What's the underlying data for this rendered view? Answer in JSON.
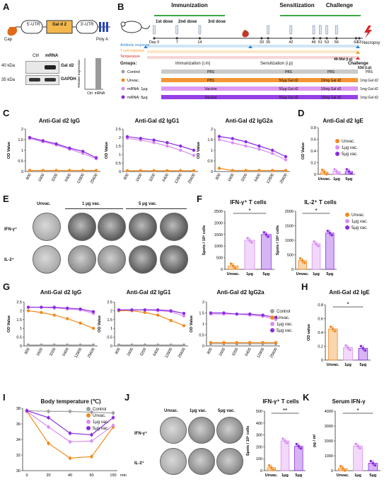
{
  "panels": {
    "A": "A",
    "B": "B",
    "C": "C",
    "D": "D",
    "E": "E",
    "F": "F",
    "G": "G",
    "H": "H",
    "I": "I",
    "J": "J",
    "K": "K"
  },
  "panelA": {
    "cap": "Cap",
    "utr5": "5'-UTR",
    "gene": "Gal d 2",
    "utr3": "3'-UTR",
    "polya": "Poly A",
    "lane_ctrl": "Ctrl",
    "lane_mrna": "mRNA",
    "kda40": "40 kDa",
    "kda35": "35 kDa",
    "band1": "Gal d2",
    "band2": "GAPDH",
    "bar_ylabel": "Relative expression",
    "bar_ctrl": "Ctrl",
    "bar_mrna": "mRNA",
    "bar_values": [
      0.02,
      1.0
    ]
  },
  "panelB": {
    "immunization": "Immunization",
    "sensitization": "Sensitization",
    "challenge": "Challenge",
    "dose1": "1st dose",
    "dose2": "2nd dose",
    "dose3": "3rd dose",
    "days": [
      "Day 0",
      "7",
      "14",
      "33",
      "35",
      "42",
      "49",
      "51",
      "53",
      "56",
      "62",
      "63"
    ],
    "necropsy": "Necropsy",
    "responses": [
      "Antibody response",
      "T cell response",
      "Temperature"
    ],
    "groups_label": "Groups:",
    "col_imm": "Immunization (i.m)",
    "col_sens": "Sensitization (i.p)",
    "col_chal1": "49-56d (i.g)",
    "col_chal_title": "Challenge",
    "col_chal2": "63d (i.p)",
    "groups": [
      {
        "name": "Control",
        "imm": "PBS",
        "sens": "PBS",
        "chal": "PBS",
        "chal2": "PBS",
        "color": "#9e9e9e"
      },
      {
        "name": "Unvac.",
        "imm": "PBS",
        "sens": "50μg Gal d2",
        "chal": "10mg Gal d2",
        "chal2": "1mg Gal d2",
        "color": "#f28a1e"
      },
      {
        "name": "mRNA: 1μg",
        "imm": "Vaccine",
        "sens": "50μg Gal d2",
        "chal": "10mg Gal d2",
        "chal2": "1mg Gal d2",
        "color": "#d98ef0"
      },
      {
        "name": "mRNA: 5μg",
        "imm": "Vaccine",
        "sens": "50μg Gal d2",
        "chal": "10mg Gal d2",
        "chal2": "1mg Gal d2",
        "color": "#8a2be2"
      }
    ]
  },
  "colors": {
    "control": "#9e9e9e",
    "unvac": "#f28a1e",
    "vac1": "#d98ef0",
    "vac5": "#8a2be2"
  },
  "legend": {
    "control": "Control",
    "unvac": "Unvac.",
    "vac1": "1μg vac.",
    "vac5": "5μg vac."
  },
  "panelE": {
    "unvac": "Unvac.",
    "vac1": "1 μg vac.",
    "vac5": "5 μg vac.",
    "ifn": "IFN-γ⁺",
    "il2": "IL-2⁺"
  },
  "panelJ": {
    "unvac": "Unvac.",
    "vac1": "1μg vac.",
    "vac5": "5μg vac.",
    "ifn": "IFN-γ⁺",
    "il2": "IL-2⁺"
  },
  "chart_data": [
    {
      "id": "C1",
      "type": "line",
      "title": "Anti-Gal d2 IgG",
      "ylabel": "OD Value",
      "ylim": [
        0,
        2.0
      ],
      "yticks": [
        0,
        0.5,
        1.0,
        1.5,
        2.0
      ],
      "categories": [
        "800",
        "1600",
        "3200",
        "6400",
        "12800",
        "25600"
      ],
      "series": [
        {
          "name": "Unvac.",
          "values": [
            0.05,
            0.05,
            0.05,
            0.05,
            0.05,
            0.05
          ]
        },
        {
          "name": "1μg vac.",
          "values": [
            1.55,
            1.4,
            1.25,
            1.05,
            0.85,
            0.6
          ]
        },
        {
          "name": "5μg vac.",
          "values": [
            1.6,
            1.45,
            1.3,
            1.1,
            0.95,
            0.65
          ]
        }
      ]
    },
    {
      "id": "C2",
      "type": "line",
      "title": "Anti-Gal d2 IgG1",
      "ylabel": "OD Value",
      "ylim": [
        0,
        2.5
      ],
      "yticks": [
        0,
        0.5,
        1.0,
        1.5,
        2.0,
        2.5
      ],
      "categories": [
        "800",
        "1600",
        "3200",
        "6400",
        "12800",
        "25600"
      ],
      "series": [
        {
          "name": "Unvac.",
          "values": [
            0.05,
            0.05,
            0.05,
            0.05,
            0.05,
            0.05
          ]
        },
        {
          "name": "1μg vac.",
          "values": [
            1.95,
            1.85,
            1.7,
            1.5,
            1.25,
            0.95
          ]
        },
        {
          "name": "5μg vac.",
          "values": [
            2.05,
            1.95,
            1.85,
            1.7,
            1.5,
            1.25
          ]
        }
      ]
    },
    {
      "id": "C3",
      "type": "line",
      "title": "Anti-Gal d2 IgG2a",
      "ylabel": "OD Value",
      "ylim": [
        0,
        2.0
      ],
      "yticks": [
        0,
        0.5,
        1.0,
        1.5,
        2.0
      ],
      "categories": [
        "800",
        "1600",
        "3200",
        "6400",
        "12800",
        "25600"
      ],
      "series": [
        {
          "name": "Unvac.",
          "values": [
            0.15,
            0.05,
            0.05,
            0.05,
            0.05,
            0.05
          ]
        },
        {
          "name": "1μg vac.",
          "values": [
            1.5,
            1.35,
            1.2,
            1.05,
            0.85,
            0.55
          ]
        },
        {
          "name": "5μg vac.",
          "values": [
            1.65,
            1.55,
            1.4,
            1.2,
            1.0,
            0.7
          ]
        }
      ]
    },
    {
      "id": "D",
      "type": "bar",
      "title": "Anti-Gal d2 IgE",
      "ylabel": "OD Value",
      "ylim": [
        0,
        0.8
      ],
      "yticks": [
        0,
        0.2,
        0.4,
        0.6,
        0.8
      ],
      "categories": [
        "Unvac.",
        "1μg",
        "5μg"
      ],
      "values": [
        0.04,
        0.05,
        0.05
      ]
    },
    {
      "id": "F1",
      "type": "bar",
      "title": "IFN-γ⁺ T cells",
      "ylabel": "Spots / 10⁶ cells",
      "ylim": [
        0,
        2500
      ],
      "yticks": [
        0,
        500,
        1000,
        1500,
        2000,
        2500
      ],
      "categories": [
        "Unvac.",
        "1μg",
        "5μg"
      ],
      "values": [
        150,
        1250,
        1500
      ],
      "annotation": "*"
    },
    {
      "id": "F2",
      "type": "bar",
      "title": "IL-2⁺ T cells",
      "ylabel": "Spots / 10⁶ cells",
      "ylim": [
        0,
        2000
      ],
      "yticks": [
        0,
        500,
        1000,
        1500,
        2000
      ],
      "categories": [
        "Unvac.",
        "1μg",
        "5μg"
      ],
      "values": [
        300,
        880,
        1250
      ],
      "annotation": "*"
    },
    {
      "id": "G1",
      "type": "line",
      "title": "Anti-Gal d2 IgG",
      "ylabel": "OD Value",
      "ylim": [
        0,
        2.5
      ],
      "yticks": [
        0,
        0.5,
        1.0,
        1.5,
        2.0,
        2.5
      ],
      "categories": [
        "800",
        "1600",
        "3200",
        "6400",
        "12800",
        "25600"
      ],
      "series": [
        {
          "name": "Control",
          "values": [
            0.05,
            0.05,
            0.05,
            0.05,
            0.05,
            0.05
          ]
        },
        {
          "name": "Unvac.",
          "values": [
            2.0,
            1.9,
            1.75,
            1.55,
            1.3,
            1.0
          ]
        },
        {
          "name": "1μg vac.",
          "values": [
            2.2,
            2.2,
            2.15,
            2.1,
            2.05,
            1.85
          ]
        },
        {
          "name": "5μg vac.",
          "values": [
            2.2,
            2.2,
            2.2,
            2.15,
            2.1,
            1.95
          ]
        }
      ]
    },
    {
      "id": "G2",
      "type": "line",
      "title": "Anti-Gal d2 IgG1",
      "ylabel": "OD Value",
      "ylim": [
        0,
        2.5
      ],
      "yticks": [
        0,
        0.5,
        1.0,
        1.5,
        2.0,
        2.5
      ],
      "categories": [
        "800",
        "1600",
        "3200",
        "6400",
        "12800",
        "25600"
      ],
      "series": [
        {
          "name": "Control",
          "values": [
            0.05,
            0.05,
            0.05,
            0.05,
            0.05,
            0.05
          ]
        },
        {
          "name": "Unvac.",
          "values": [
            2.0,
            2.0,
            1.9,
            1.75,
            1.45,
            1.15
          ]
        },
        {
          "name": "1μg vac.",
          "values": [
            2.05,
            2.05,
            2.05,
            2.0,
            1.95,
            1.7
          ]
        },
        {
          "name": "5μg vac.",
          "values": [
            2.05,
            2.05,
            2.05,
            2.05,
            2.0,
            1.85
          ]
        }
      ]
    },
    {
      "id": "G3",
      "type": "line",
      "title": "Anti-Gal d2 IgG2a",
      "ylabel": "OD Value",
      "ylim": [
        0,
        2.0
      ],
      "yticks": [
        0,
        0.5,
        1.0,
        1.5,
        2.0
      ],
      "categories": [
        "800",
        "1600",
        "3200",
        "6400",
        "12800",
        "25600"
      ],
      "series": [
        {
          "name": "Control",
          "values": [
            0.1,
            0.1,
            0.1,
            0.1,
            0.1,
            0.1
          ]
        },
        {
          "name": "Unvac.",
          "values": [
            0.15,
            0.15,
            0.15,
            0.15,
            0.15,
            0.15
          ]
        },
        {
          "name": "1μg vac.",
          "values": [
            1.45,
            1.45,
            1.45,
            1.4,
            1.35,
            1.2
          ]
        },
        {
          "name": "5μg vac.",
          "values": [
            1.5,
            1.5,
            1.45,
            1.45,
            1.4,
            1.3
          ]
        }
      ]
    },
    {
      "id": "H",
      "type": "bar",
      "title": "Anti-Gal d2 IgE",
      "ylabel": "OD value",
      "ylim": [
        0,
        0.8
      ],
      "yticks": [
        0,
        0.2,
        0.4,
        0.6,
        0.8
      ],
      "categories": [
        "Unvac.",
        "1μg",
        "5μg"
      ],
      "values": [
        0.45,
        0.18,
        0.17
      ],
      "annotation": "*"
    },
    {
      "id": "I",
      "type": "line",
      "title": "Body temperature (℃)",
      "ylim": [
        30,
        38
      ],
      "yticks": [
        30,
        32,
        34,
        36,
        38
      ],
      "categories": [
        "0",
        "20",
        "40",
        "60",
        "150"
      ],
      "xunit": "min",
      "series": [
        {
          "name": "Control",
          "values": [
            37.7,
            37.6,
            37.6,
            37.5,
            37.4
          ]
        },
        {
          "name": "Unvac.",
          "values": [
            37.6,
            33.5,
            31.6,
            31.8,
            35.6
          ]
        },
        {
          "name": "1μg vac.",
          "values": [
            37.6,
            35.6,
            33.7,
            33.8,
            35.8
          ]
        },
        {
          "name": "5μg vac.",
          "values": [
            37.7,
            36.8,
            34.8,
            34.6,
            36.8
          ]
        }
      ]
    },
    {
      "id": "J",
      "type": "bar",
      "title": "IFN-γ⁺ T cells",
      "ylabel": "Spots / 10⁶ cells",
      "ylim": [
        0,
        500
      ],
      "yticks": [
        0,
        100,
        200,
        300,
        400,
        500
      ],
      "categories": [
        "Unvac.",
        "1μg",
        "5μg"
      ],
      "values": [
        25,
        250,
        205
      ],
      "annotation": "**"
    },
    {
      "id": "K",
      "type": "bar",
      "title": "Serum IFN-γ",
      "ylabel": "pg / ml",
      "ylim": [
        0,
        4000
      ],
      "yticks": [
        0,
        1000,
        2000,
        3000,
        4000
      ],
      "categories": [
        "Unvac.",
        "1μg",
        "5μg"
      ],
      "values": [
        150,
        1650,
        500
      ],
      "annotation": "*"
    }
  ]
}
